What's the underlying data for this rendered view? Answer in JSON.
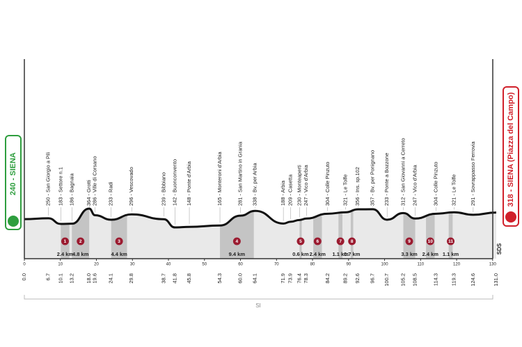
{
  "chart_data": {
    "type": "profile",
    "start": {
      "label": "240 - SIENA",
      "elevation": 240,
      "km": {
        "value": 0,
        "label": "0.0"
      }
    },
    "finish": {
      "label": "318 - SIENA (Piazza del Campo)",
      "elevation": 318,
      "km": {
        "value": 131,
        "label": "131.0"
      }
    },
    "xlim": [
      0,
      131
    ],
    "xticks": [
      0,
      10,
      20,
      30,
      40,
      50,
      60,
      70,
      80,
      90,
      100,
      110,
      120,
      130
    ],
    "waypoints": [
      {
        "km": 6.7,
        "elevation": 250,
        "label": "250 - San Giorgio a Pili"
      },
      {
        "km": 10.1,
        "elevation": 183,
        "label": "183 - Settore n.1"
      },
      {
        "km": 13.2,
        "elevation": 186,
        "label": "186 - Bagnaia"
      },
      {
        "km": {
          "value": 18,
          "label": "18.0"
        },
        "elevation": 364,
        "label": "364 - Grotti"
      },
      {
        "km": 19.6,
        "elevation": 286,
        "label": "286 - Ville di Corsano"
      },
      {
        "km": 24.1,
        "elevation": 233,
        "label": "233 - Radi"
      },
      {
        "km": 29.8,
        "elevation": 296,
        "label": "296 - Vescovado"
      },
      {
        "km": 38.7,
        "elevation": 239,
        "label": "239 - Bibbiano"
      },
      {
        "km": 41.8,
        "elevation": 142,
        "label": "142 - Buonconvento"
      },
      {
        "km": 45.8,
        "elevation": 148,
        "label": "148 - Ponte d'Arbia"
      },
      {
        "km": 54.3,
        "elevation": 165,
        "label": "165 - Monteroni d'Arbia"
      },
      {
        "km": {
          "value": 60,
          "label": "60.0"
        },
        "elevation": 281,
        "label": "281 - San Martino in Grania"
      },
      {
        "km": 64.1,
        "elevation": 338,
        "label": "338 - Bv. per Arbia"
      },
      {
        "km": 71.9,
        "elevation": 188,
        "label": "188 - Arbia"
      },
      {
        "km": 73.9,
        "elevation": 209,
        "label": "209 - Casetta"
      },
      {
        "km": 76.4,
        "elevation": 230,
        "label": "230 - Monteaperti"
      },
      {
        "km": 78.3,
        "elevation": 247,
        "label": "247 - Vico d'Arbia"
      },
      {
        "km": 84.2,
        "elevation": 304,
        "label": "304 - Colle Pinzuto"
      },
      {
        "km": 89.2,
        "elevation": 321,
        "label": "321 - Le Tolfe"
      },
      {
        "km": 92.6,
        "elevation": 356,
        "label": "356 - Ins. sp.102"
      },
      {
        "km": 96.7,
        "elevation": 357,
        "label": "357 - Bv. per Ponignano"
      },
      {
        "km": 100.7,
        "elevation": 233,
        "label": "233 - Ponte a Bozzone"
      },
      {
        "km": 105.2,
        "elevation": 312,
        "label": "312 - San Giovanni a Cerreto"
      },
      {
        "km": 108.5,
        "elevation": 247,
        "label": "247 - Vico d'Arbia"
      },
      {
        "km": 114.3,
        "elevation": 304,
        "label": "304 - Colle Pinzuto"
      },
      {
        "km": 119.3,
        "elevation": 321,
        "label": "321 - Le Tolfe"
      },
      {
        "km": 124.6,
        "elevation": 291,
        "label": "291 - Sovrappasso Ferrovia"
      }
    ],
    "sectors": [
      {
        "number": 1,
        "start_km": 10.1,
        "length": 2.4,
        "length_label": "2.4 km"
      },
      {
        "number": 2,
        "start_km": 13.2,
        "length": 4.8,
        "length_label": "4.8 km"
      },
      {
        "number": 3,
        "start_km": 24.1,
        "length": 4.4,
        "length_label": "4.4 km"
      },
      {
        "number": 4,
        "start_km": 54.3,
        "length": 9.4,
        "length_label": "9.4 km"
      },
      {
        "number": 5,
        "start_km": 76.4,
        "length": 0.6,
        "length_label": "0.6 km"
      },
      {
        "number": 6,
        "start_km": 80.2,
        "length": 2.4,
        "length_label": "2.4 km"
      },
      {
        "number": 7,
        "start_km": 87.2,
        "length": 1.1,
        "length_label": "1.1 km"
      },
      {
        "number": 8,
        "start_km": 90.6,
        "length": 0.7,
        "length_label": "0.7 km"
      },
      {
        "number": 9,
        "start_km": 105.2,
        "length": 3.3,
        "length_label": "3.3 km"
      },
      {
        "number": 10,
        "start_km": 111.5,
        "length": 2.4,
        "length_label": "2.4 km"
      },
      {
        "number": 11,
        "start_km": 117.8,
        "length": 1.1,
        "length_label": "1.1 km"
      }
    ],
    "region": "SI",
    "logo": "SDS"
  }
}
